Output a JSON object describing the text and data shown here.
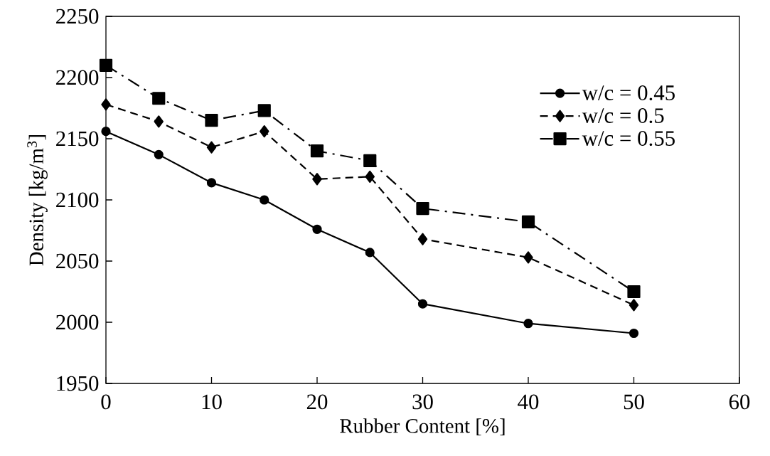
{
  "chart_data": {
    "type": "line",
    "xlabel": "Rubber Content [%]",
    "ylabel": "Density  [kg/m$^{3}$]",
    "x": [
      0,
      5,
      10,
      15,
      20,
      25,
      30,
      40,
      50
    ],
    "xlim": [
      0,
      60
    ],
    "xticks": [
      0,
      10,
      20,
      30,
      40,
      50,
      60
    ],
    "ylim": [
      1950,
      2250
    ],
    "yticks": [
      1950,
      2000,
      2050,
      2100,
      2150,
      2200,
      2250
    ],
    "grid": false,
    "legend": "top right",
    "series": [
      {
        "name": "w/c = 0.45",
        "color": "#000000",
        "marker": "circle",
        "line_style": "solid",
        "values": [
          2156,
          2137,
          2114,
          2100,
          2076,
          2057,
          2015,
          1999,
          1991
        ]
      },
      {
        "name": "w/c = 0.5",
        "color": "#000000",
        "marker": "diamond",
        "line_style": "dashed",
        "values": [
          2178,
          2164,
          2143,
          2156,
          2117,
          2119,
          2068,
          2053,
          2014
        ]
      },
      {
        "name": "w/c = 0.55",
        "color": "#000000",
        "marker": "square",
        "line_style": "dashdot",
        "values": [
          2210,
          2183,
          2165,
          2173,
          2140,
          2132,
          2093,
          2082,
          2025
        ]
      }
    ]
  }
}
